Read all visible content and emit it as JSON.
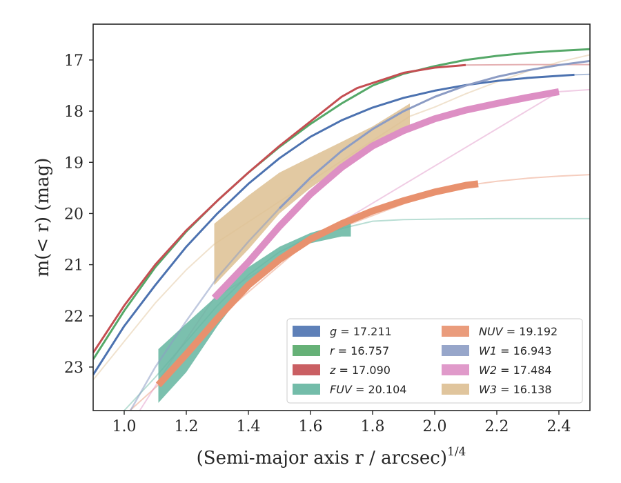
{
  "chart_data": {
    "type": "line",
    "xlabel": "(Semi-major axis r / arcsec)",
    "xlabel_sup": "1/4",
    "ylabel": "m(< r) (mag)",
    "xlim": [
      0.9,
      2.5
    ],
    "ylim": [
      23.85,
      16.3
    ],
    "y_inverted": true,
    "xticks": [
      "1.0",
      "1.2",
      "1.4",
      "1.6",
      "1.8",
      "2.0",
      "2.2",
      "2.4"
    ],
    "xtick_values": [
      1.0,
      1.2,
      1.4,
      1.6,
      1.8,
      2.0,
      2.2,
      2.4
    ],
    "yticks": [
      "17",
      "18",
      "19",
      "20",
      "21",
      "22",
      "23"
    ],
    "ytick_values": [
      17,
      18,
      19,
      20,
      21,
      22,
      23
    ],
    "grid": false,
    "legend_placement": "lower-right",
    "series": [
      {
        "name": "g = 17.211",
        "band": "g",
        "value": "17.211",
        "color": "#4c72b0",
        "style": "line",
        "x": [
          0.9,
          1.0,
          1.1,
          1.2,
          1.3,
          1.4,
          1.5,
          1.6,
          1.7,
          1.8,
          1.9,
          2.0,
          2.1,
          2.2,
          2.3,
          2.45
        ],
        "y": [
          23.15,
          22.2,
          21.4,
          20.65,
          20.0,
          19.42,
          18.92,
          18.5,
          18.18,
          17.93,
          17.74,
          17.6,
          17.49,
          17.41,
          17.35,
          17.29
        ],
        "extension": {
          "x": [
            2.45,
            2.5
          ],
          "y": [
            17.29,
            17.28
          ]
        }
      },
      {
        "name": "r = 16.757",
        "band": "r",
        "value": "16.757",
        "color": "#55a868",
        "style": "line",
        "x": [
          0.9,
          1.0,
          1.1,
          1.2,
          1.3,
          1.4,
          1.5,
          1.6,
          1.7,
          1.8,
          1.9,
          2.0,
          2.1,
          2.2,
          2.3,
          2.4,
          2.5
        ],
        "y": [
          22.85,
          21.9,
          21.05,
          20.35,
          19.75,
          19.2,
          18.7,
          18.25,
          17.85,
          17.5,
          17.27,
          17.12,
          17.0,
          16.92,
          16.86,
          16.82,
          16.79
        ]
      },
      {
        "name": "z = 17.090",
        "band": "z",
        "value": "17.090",
        "color": "#c44e52",
        "style": "line",
        "x": [
          0.9,
          1.0,
          1.1,
          1.2,
          1.3,
          1.4,
          1.5,
          1.6,
          1.7,
          1.75,
          1.8,
          1.9,
          2.0,
          2.1
        ],
        "y": [
          22.72,
          21.8,
          21.0,
          20.33,
          19.75,
          19.2,
          18.68,
          18.2,
          17.72,
          17.55,
          17.45,
          17.25,
          17.15,
          17.1
        ],
        "extension": {
          "x": [
            2.1,
            2.3,
            2.5
          ],
          "y": [
            17.1,
            17.09,
            17.09
          ]
        }
      },
      {
        "name": "FUV = 20.104",
        "band": "FUV",
        "value": "20.104",
        "color": "#64b5a0",
        "style": "band",
        "x": [
          1.11,
          1.2,
          1.3,
          1.4,
          1.5,
          1.6,
          1.7,
          1.73
        ],
        "y_upper": [
          22.65,
          22.15,
          21.6,
          21.05,
          20.65,
          20.38,
          20.2,
          20.15
        ],
        "y_lower": [
          23.7,
          23.1,
          22.2,
          21.4,
          20.85,
          20.58,
          20.45,
          20.45
        ],
        "extension": {
          "x": [
            1.0,
            1.1,
            1.2,
            1.3,
            1.4,
            1.5,
            1.6,
            1.73,
            1.8,
            1.9,
            2.0,
            2.2,
            2.4,
            2.5
          ],
          "y": [
            23.85,
            23.2,
            22.5,
            21.8,
            21.2,
            20.75,
            20.45,
            20.25,
            20.15,
            20.12,
            20.11,
            20.1,
            20.1,
            20.1
          ]
        }
      },
      {
        "name": "NUV = 19.192",
        "band": "NUV",
        "value": "19.192",
        "color": "#e8916e",
        "style": "thick",
        "x": [
          1.11,
          1.2,
          1.3,
          1.4,
          1.5,
          1.6,
          1.7,
          1.8,
          1.9,
          2.0,
          2.1,
          2.14
        ],
        "y": [
          23.35,
          22.75,
          22.05,
          21.4,
          20.9,
          20.5,
          20.2,
          19.95,
          19.75,
          19.58,
          19.45,
          19.42
        ],
        "extension": {
          "x": [
            1.0,
            1.11,
            1.3,
            1.6,
            2.0,
            2.14,
            2.2,
            2.3,
            2.4,
            2.5
          ],
          "y": [
            23.95,
            23.35,
            22.05,
            20.5,
            19.58,
            19.42,
            19.37,
            19.31,
            19.27,
            19.24
          ]
        }
      },
      {
        "name": "W1 = 16.943",
        "band": "W1",
        "value": "16.943",
        "color": "#8c9cc4",
        "style": "line",
        "x": [
          1.02,
          1.1,
          1.2,
          1.3,
          1.4,
          1.5,
          1.6,
          1.7,
          1.8,
          1.9,
          2.0,
          2.1,
          2.2,
          2.3,
          2.4,
          2.5
        ],
        "y": [
          23.85,
          23.0,
          22.1,
          21.25,
          20.55,
          19.9,
          19.3,
          18.78,
          18.35,
          18.0,
          17.72,
          17.5,
          17.33,
          17.2,
          17.1,
          17.02
        ],
        "faint_segment_end": 1.5
      },
      {
        "name": "W2 = 17.484",
        "band": "W2",
        "value": "17.484",
        "color": "#dd8fc4",
        "style": "thick",
        "x": [
          1.29,
          1.4,
          1.5,
          1.6,
          1.7,
          1.8,
          1.9,
          2.0,
          2.1,
          2.2,
          2.3,
          2.4
        ],
        "y": [
          21.65,
          20.95,
          20.25,
          19.62,
          19.1,
          18.68,
          18.38,
          18.15,
          17.98,
          17.85,
          17.73,
          17.62
        ],
        "extension": {
          "x": [
            1.05,
            1.15,
            1.29,
            2.4,
            2.45,
            2.5
          ],
          "y": [
            23.85,
            22.9,
            21.65,
            17.62,
            17.6,
            17.58
          ]
        }
      },
      {
        "name": "W3 = 16.138",
        "band": "W3",
        "value": "16.138",
        "color": "#ddbf92",
        "style": "band",
        "x": [
          1.29,
          1.4,
          1.5,
          1.6,
          1.7,
          1.8,
          1.92
        ],
        "y_upper": [
          20.2,
          19.65,
          19.2,
          18.9,
          18.6,
          18.3,
          17.85
        ],
        "y_lower": [
          21.4,
          20.7,
          20.0,
          19.5,
          19.08,
          18.75,
          18.38
        ],
        "extension": {
          "x": [
            0.9,
            1.0,
            1.1,
            1.2,
            1.29,
            1.92,
            2.0,
            2.1,
            2.2,
            2.3,
            2.4,
            2.5
          ],
          "y": [
            23.25,
            22.5,
            21.75,
            21.1,
            20.6,
            18.1,
            17.92,
            17.66,
            17.43,
            17.22,
            17.04,
            16.9
          ]
        }
      }
    ]
  }
}
